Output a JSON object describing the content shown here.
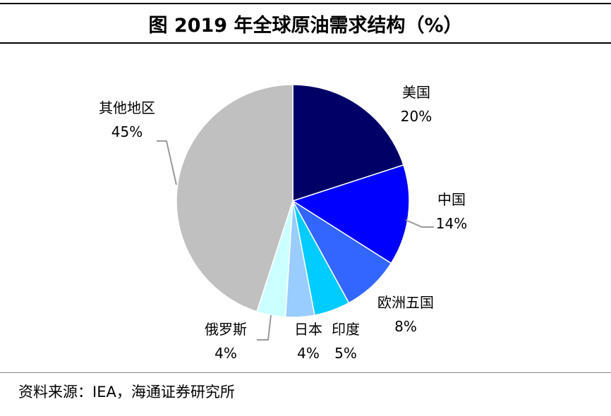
{
  "chart_data": {
    "type": "pie",
    "title": "图  2019 年全球原油需求结构（%）",
    "unit": "%",
    "slices": [
      {
        "name": "美国",
        "value": 20,
        "label": "20%",
        "color": "#000066"
      },
      {
        "name": "中国",
        "value": 14,
        "label": "14%",
        "color": "#0000FF"
      },
      {
        "name": "欧洲五国",
        "value": 8,
        "label": "8%",
        "color": "#3366FF"
      },
      {
        "name": "印度",
        "value": 5,
        "label": "5%",
        "color": "#00CCFF"
      },
      {
        "name": "日本",
        "value": 4,
        "label": "4%",
        "color": "#99CCFF"
      },
      {
        "name": "俄罗斯",
        "value": 4,
        "label": "4%",
        "color": "#CCFFFF"
      },
      {
        "name": "其他地区",
        "value": 45,
        "label": "45%",
        "color": "#C0C0C0"
      }
    ]
  },
  "source": "资料来源：IEA，海通证券研究所"
}
